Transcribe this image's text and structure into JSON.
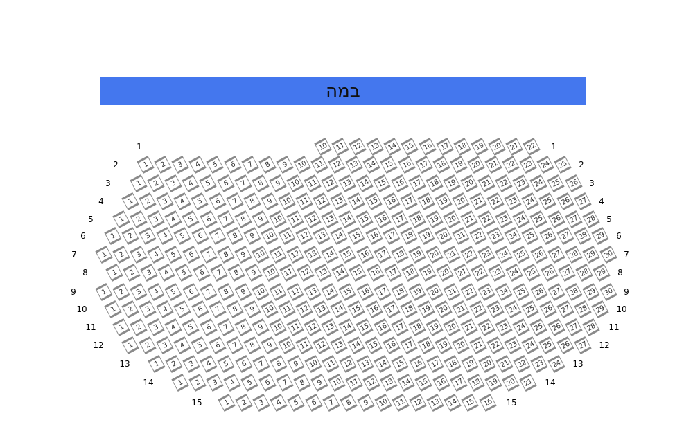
{
  "stage": {
    "label": "במה",
    "color": "#4477ee"
  },
  "seat_style": {
    "border_color": "#8a8a8a",
    "fill": "#ffffff"
  },
  "rows": [
    {
      "label": "1",
      "first_seat": 10,
      "last_seat": 22
    },
    {
      "label": "2",
      "first_seat": 1,
      "last_seat": 25
    },
    {
      "label": "3",
      "first_seat": 1,
      "last_seat": 26
    },
    {
      "label": "4",
      "first_seat": 1,
      "last_seat": 27
    },
    {
      "label": "5",
      "first_seat": 1,
      "last_seat": 28
    },
    {
      "label": "6",
      "first_seat": 1,
      "last_seat": 29
    },
    {
      "label": "7",
      "first_seat": 1,
      "last_seat": 30
    },
    {
      "label": "8",
      "first_seat": 1,
      "last_seat": 29
    },
    {
      "label": "9",
      "first_seat": 1,
      "last_seat": 30
    },
    {
      "label": "10",
      "first_seat": 1,
      "last_seat": 29
    },
    {
      "label": "11",
      "first_seat": 1,
      "last_seat": 28
    },
    {
      "label": "12",
      "first_seat": 1,
      "last_seat": 27
    },
    {
      "label": "13",
      "first_seat": 1,
      "last_seat": 24
    },
    {
      "label": "14",
      "first_seat": 1,
      "last_seat": 21
    },
    {
      "label": "15",
      "first_seat": 1,
      "last_seat": 16
    }
  ]
}
